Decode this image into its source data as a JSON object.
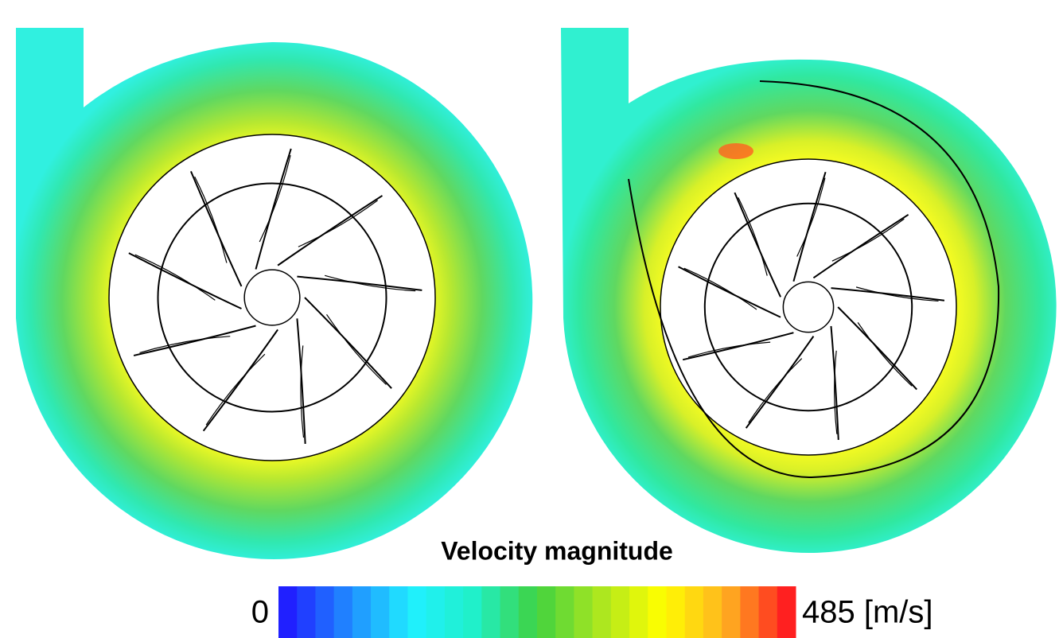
{
  "colorbar": {
    "title": "Velocity magnitude",
    "min_label": "0",
    "max_label": "485 [m/s]"
  }
}
